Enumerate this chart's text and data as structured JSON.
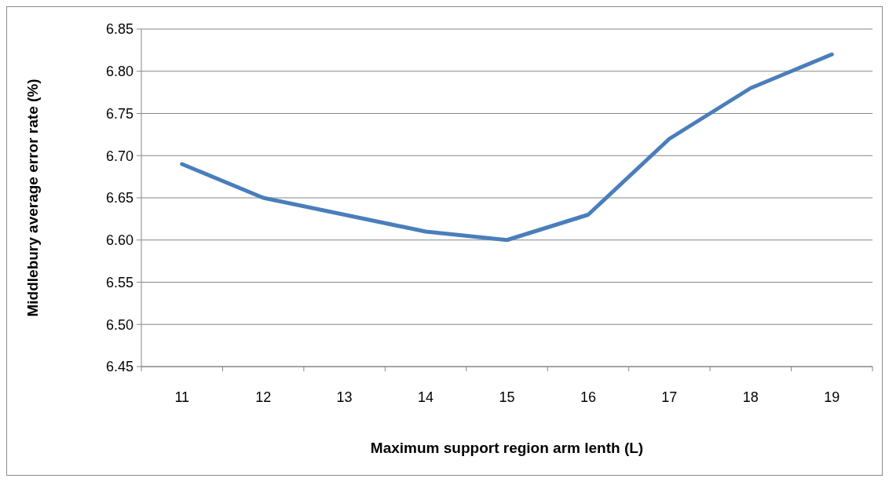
{
  "chart_data": {
    "type": "line",
    "xlabel": "Maximum support region arm lenth (L)",
    "ylabel": "Middlebury average error rate (%)",
    "categories": [
      "11",
      "12",
      "13",
      "14",
      "15",
      "16",
      "17",
      "18",
      "19"
    ],
    "series": [
      {
        "color": "#4a7ebb",
        "values": [
          6.69,
          6.65,
          6.63,
          6.61,
          6.6,
          6.63,
          6.72,
          6.78,
          6.82
        ]
      }
    ],
    "ylim": [
      6.45,
      6.85
    ],
    "yticks": [
      {
        "value": 6.45,
        "label": "6.45"
      },
      {
        "value": 6.5,
        "label": "6.50"
      },
      {
        "value": 6.55,
        "label": "6.55"
      },
      {
        "value": 6.6,
        "label": "6.60"
      },
      {
        "value": 6.65,
        "label": "6.65"
      },
      {
        "value": 6.7,
        "label": "6.70"
      },
      {
        "value": 6.75,
        "label": "6.75"
      },
      {
        "value": 6.8,
        "label": "6.80"
      },
      {
        "value": 6.85,
        "label": "6.85"
      }
    ],
    "grid": "y",
    "marker": "none",
    "line_style": "solid"
  }
}
